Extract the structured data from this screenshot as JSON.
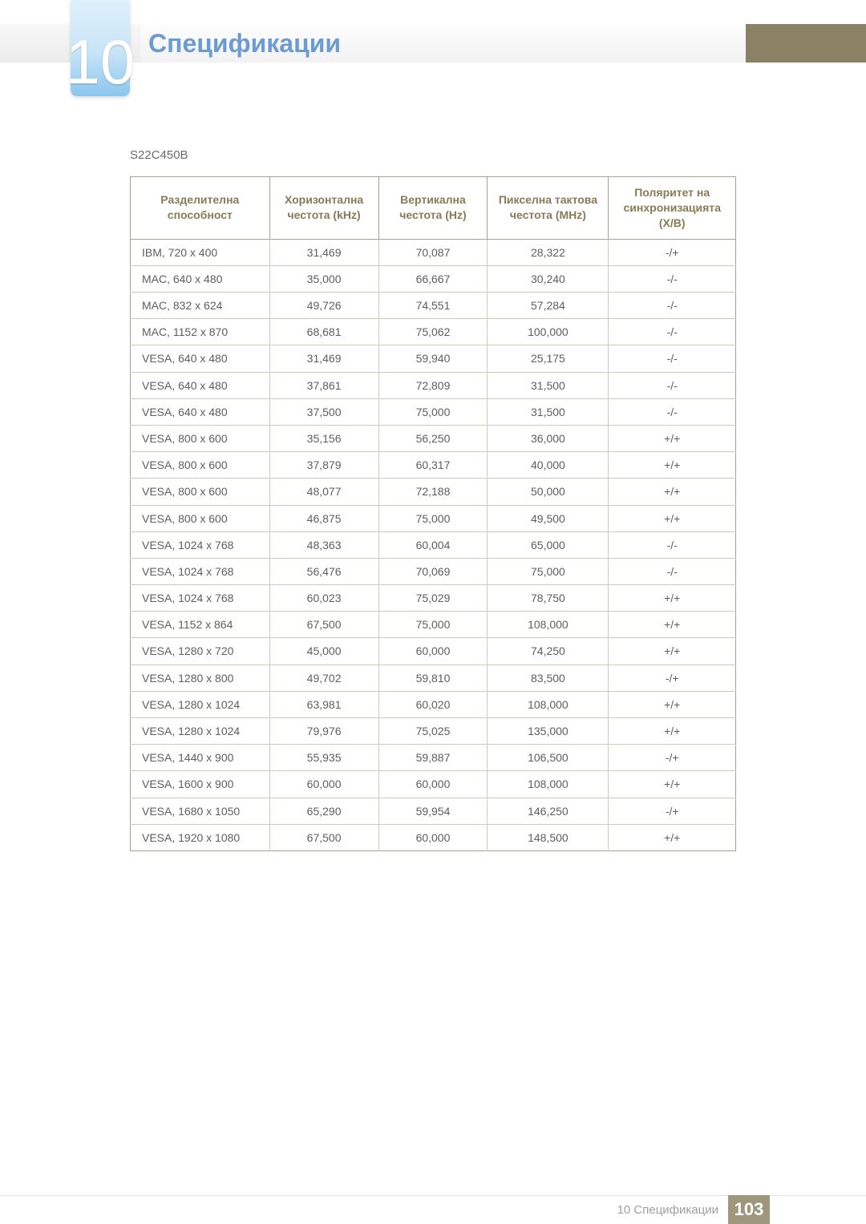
{
  "header": {
    "chapter_number": "10",
    "title": "Спецификации",
    "title_color": "#6b9bd1",
    "band_right_color": "#8b8265"
  },
  "model": "S22C450B",
  "table": {
    "border_color": "#a9a092",
    "header_text_color": "#8a7a56",
    "row_border_color": "#cfc9bb",
    "columns": [
      "Разделителна способност",
      "Хоризонтална честота (kHz)",
      "Вертикална честота (Hz)",
      "Пикселна тактова честота (MHz)",
      "Поляритет на синхронизацията (X/B)"
    ],
    "rows": [
      [
        "IBM, 720 x 400",
        "31,469",
        "70,087",
        "28,322",
        "-/+"
      ],
      [
        "MAC, 640 x 480",
        "35,000",
        "66,667",
        "30,240",
        "-/-"
      ],
      [
        "MAC, 832 x 624",
        "49,726",
        "74,551",
        "57,284",
        "-/-"
      ],
      [
        "MAC, 1152 x 870",
        "68,681",
        "75,062",
        "100,000",
        "-/-"
      ],
      [
        "VESA, 640 x 480",
        "31,469",
        "59,940",
        "25,175",
        "-/-"
      ],
      [
        "VESA, 640 x 480",
        "37,861",
        "72,809",
        "31,500",
        "-/-"
      ],
      [
        "VESA, 640 x 480",
        "37,500",
        "75,000",
        "31,500",
        "-/-"
      ],
      [
        "VESA, 800 x 600",
        "35,156",
        "56,250",
        "36,000",
        "+/+"
      ],
      [
        "VESA, 800 x 600",
        "37,879",
        "60,317",
        "40,000",
        "+/+"
      ],
      [
        "VESA, 800 x 600",
        "48,077",
        "72,188",
        "50,000",
        "+/+"
      ],
      [
        "VESA, 800 x 600",
        "46,875",
        "75,000",
        "49,500",
        "+/+"
      ],
      [
        "VESA, 1024 x 768",
        "48,363",
        "60,004",
        "65,000",
        "-/-"
      ],
      [
        "VESA, 1024 x 768",
        "56,476",
        "70,069",
        "75,000",
        "-/-"
      ],
      [
        "VESA, 1024 x 768",
        "60,023",
        "75,029",
        "78,750",
        "+/+"
      ],
      [
        "VESA, 1152 x 864",
        "67,500",
        "75,000",
        "108,000",
        "+/+"
      ],
      [
        "VESA, 1280 x 720",
        "45,000",
        "60,000",
        "74,250",
        "+/+"
      ],
      [
        "VESA, 1280 x 800",
        "49,702",
        "59,810",
        "83,500",
        "-/+"
      ],
      [
        "VESA, 1280 x 1024",
        "63,981",
        "60,020",
        "108,000",
        "+/+"
      ],
      [
        "VESA, 1280 x 1024",
        "79,976",
        "75,025",
        "135,000",
        "+/+"
      ],
      [
        "VESA, 1440 x 900",
        "55,935",
        "59,887",
        "106,500",
        "-/+"
      ],
      [
        "VESA, 1600 x 900",
        "60,000",
        "60,000",
        "108,000",
        "+/+"
      ],
      [
        "VESA, 1680 x 1050",
        "65,290",
        "59,954",
        "146,250",
        "-/+"
      ],
      [
        "VESA, 1920 x 1080",
        "67,500",
        "60,000",
        "148,500",
        "+/+"
      ]
    ],
    "col_widths_pct": [
      23,
      18,
      18,
      20,
      21
    ]
  },
  "footer": {
    "text": "10 Спецификации",
    "page_number": "103",
    "page_bg": "#9e977e"
  }
}
